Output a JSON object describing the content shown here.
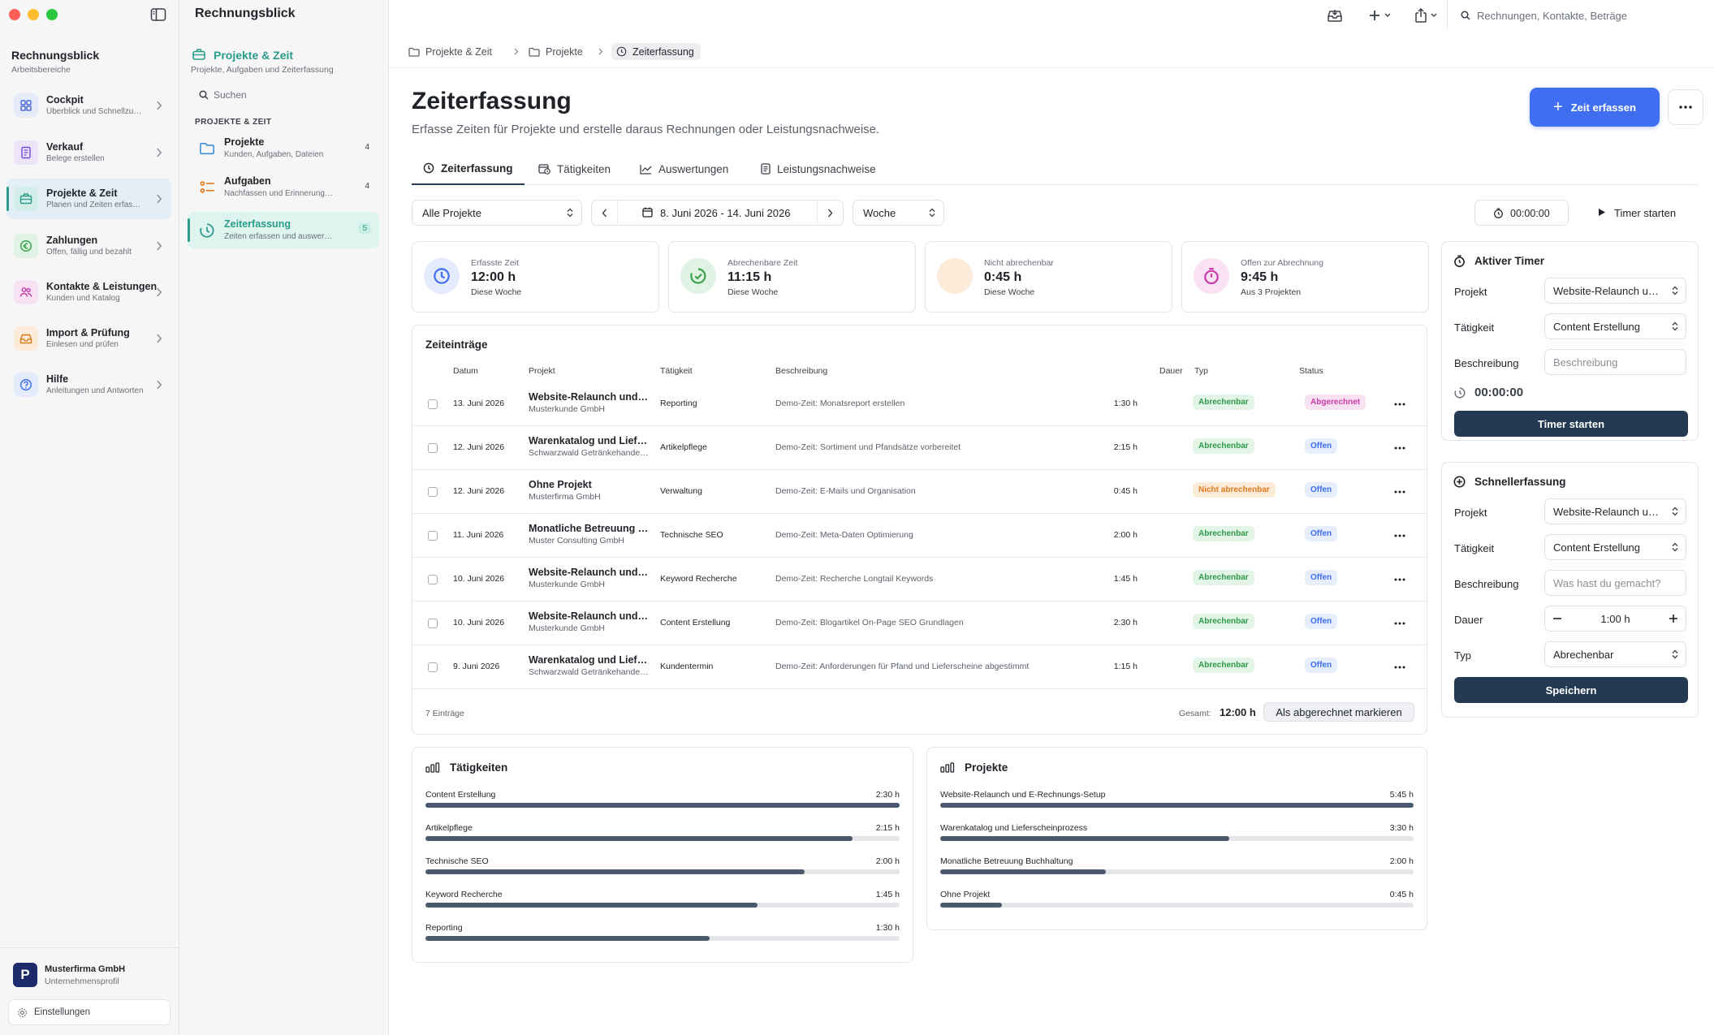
{
  "app": {
    "title": "Rechnungsblick",
    "workspace_title": "Rechnungsblick",
    "workspace_subtitle": "Arbeitsbereiche"
  },
  "sidebar": {
    "items": [
      {
        "label": "Cockpit",
        "sub": "Überblick und Schnellzugriff",
        "icon": "grid-icon",
        "color": "#4f6bd8",
        "bg": "#e6ebfa",
        "active": false
      },
      {
        "label": "Verkauf",
        "sub": "Belege erstellen",
        "icon": "document-icon",
        "color": "#7b4fd8",
        "bg": "#ece5fa",
        "active": false
      },
      {
        "label": "Projekte & Zeit",
        "sub": "Planen und Zeiten erfassen",
        "icon": "briefcase-icon",
        "color": "#2b9b8c",
        "bg": "#d3ede8",
        "active": true
      },
      {
        "label": "Zahlungen",
        "sub": "Offen, fällig und bezahlt",
        "icon": "euro-icon",
        "color": "#3aa34d",
        "bg": "#e1f3e4",
        "active": false
      },
      {
        "label": "Kontakte & Leistungen",
        "sub": "Kunden und Katalog",
        "icon": "people-icon",
        "color": "#c93ba7",
        "bg": "#f8e2f3",
        "active": false
      },
      {
        "label": "Import & Prüfung",
        "sub": "Einlesen und prüfen",
        "icon": "inbox-icon",
        "color": "#e07a1c",
        "bg": "#fcebd9",
        "active": false
      },
      {
        "label": "Hilfe",
        "sub": "Anleitungen und Antworten",
        "icon": "help-icon",
        "color": "#3f6ff0",
        "bg": "#e3ebfc",
        "active": false
      }
    ],
    "company_logo": "P",
    "company_name": "Musterfirma GmbH",
    "company_sub": "Unternehmensprofil",
    "settings_label": "Einstellungen"
  },
  "subnav": {
    "title": "Projekte & Zeit",
    "subtitle": "Projekte, Aufgaben und Zeiterfassung",
    "search_label": "Suchen",
    "section": "PROJEKTE & ZEIT",
    "items": [
      {
        "label": "Projekte",
        "desc": "Kunden, Aufgaben, Dateien",
        "count": "4",
        "active": false
      },
      {
        "label": "Aufgaben",
        "desc": "Nachfassen und Erinnerungen",
        "count": "4",
        "active": false
      },
      {
        "label": "Zeiterfassung",
        "desc": "Zeiten erfassen und auswerten",
        "count": "5",
        "active": true
      }
    ]
  },
  "toolbar": {
    "search_placeholder": "Rechnungen, Kontakte, Beträge"
  },
  "breadcrumb": [
    "Projekte & Zeit",
    "Projekte",
    "Zeiterfassung"
  ],
  "page": {
    "title": "Zeiterfassung",
    "subtitle": "Erfasse Zeiten für Projekte und erstelle daraus Rechnungen oder Leistungsnachweise.",
    "primary_button": "Zeit erfassen"
  },
  "tabs": [
    "Zeiterfassung",
    "Tätigkeiten",
    "Auswertungen",
    "Leistungsnachweise"
  ],
  "filters": {
    "project": "Alle Projekte",
    "date_range": "8. Juni 2026 - 14. Juni 2026",
    "period": "Woche",
    "timer": "00:00:00",
    "timer_start": "Timer starten"
  },
  "stats": [
    {
      "label": "Erfasste Zeit",
      "value": "12:00 h",
      "hint": "Diese Woche",
      "color": "#3f6ff0",
      "bg": "#e3ebfc",
      "icon": "clock-icon"
    },
    {
      "label": "Abrechenbare Zeit",
      "value": "11:15 h",
      "hint": "Diese Woche",
      "color": "#3aa34d",
      "bg": "#e1f3e4",
      "icon": "timer-check-icon"
    },
    {
      "label": "Nicht abrechenbar",
      "value": "0:45 h",
      "hint": "Diese Woche",
      "color": "#e07a1c",
      "bg": "#fcebd9",
      "icon": "none"
    },
    {
      "label": "Offen zur Abrechnung",
      "value": "9:45 h",
      "hint": "Aus 3 Projekten",
      "color": "#c93ba7",
      "bg": "#f8e2f3",
      "icon": "stopwatch-icon"
    }
  ],
  "entries": {
    "title": "Zeiteinträge",
    "columns": {
      "date": "Datum",
      "project": "Projekt",
      "activity": "Tätigkeit",
      "description": "Beschreibung",
      "duration": "Dauer",
      "type": "Typ",
      "status": "Status"
    },
    "rows": [
      {
        "date": "13. Juni 2026",
        "project": "Website-Relaunch und E-Rechnungs-Setup",
        "client": "Musterkunde GmbH",
        "activity": "Reporting",
        "description": "Demo-Zeit: Monatsreport erstellen",
        "duration": "1:30 h",
        "type": "Abrechenbar",
        "status": "Abgerechnet"
      },
      {
        "date": "12. Juni 2026",
        "project": "Warenkatalog und Lieferscheinprozess",
        "client": "Schwarzwald Getränkehandel GmbH",
        "activity": "Artikelpflege",
        "description": "Demo-Zeit: Sortiment und Pfandsätze vorbereitet",
        "duration": "2:15 h",
        "type": "Abrechenbar",
        "status": "Offen"
      },
      {
        "date": "12. Juni 2026",
        "project": "Ohne Projekt",
        "client": "Musterfirma GmbH",
        "activity": "Verwaltung",
        "description": "Demo-Zeit: E-Mails und Organisation",
        "duration": "0:45 h",
        "type": "Nicht abrechenbar",
        "status": "Offen"
      },
      {
        "date": "11. Juni 2026",
        "project": "Monatliche Betreuung Buchhaltung",
        "client": "Muster Consulting GmbH",
        "activity": "Technische SEO",
        "description": "Demo-Zeit: Meta-Daten Optimierung",
        "duration": "2:00 h",
        "type": "Abrechenbar",
        "status": "Offen"
      },
      {
        "date": "10. Juni 2026",
        "project": "Website-Relaunch und E-Rechnungs-Setup",
        "client": "Musterkunde GmbH",
        "activity": "Keyword Recherche",
        "description": "Demo-Zeit: Recherche Longtail Keywords",
        "duration": "1:45 h",
        "type": "Abrechenbar",
        "status": "Offen"
      },
      {
        "date": "10. Juni 2026",
        "project": "Website-Relaunch und E-Rechnungs-Setup",
        "client": "Musterkunde GmbH",
        "activity": "Content Erstellung",
        "description": "Demo-Zeit: Blogartikel On-Page SEO Grundlagen",
        "duration": "2:30 h",
        "type": "Abrechenbar",
        "status": "Offen"
      },
      {
        "date": "9. Juni 2026",
        "project": "Warenkatalog und Lieferscheinprozess",
        "client": "Schwarzwald Getränkehandel GmbH",
        "activity": "Kundentermin",
        "description": "Demo-Zeit: Anforderungen für Pfand und Lieferscheine abgestimmt",
        "duration": "1:15 h",
        "type": "Abrechenbar",
        "status": "Offen"
      }
    ],
    "count": "7 Einträge",
    "total_label": "Gesamt:",
    "total_value": "12:00 h",
    "mark_button": "Als abgerechnet markieren"
  },
  "activities": {
    "title": "Tätigkeiten",
    "items": [
      {
        "name": "Content Erstellung",
        "value": "2:30 h",
        "share": 1.0
      },
      {
        "name": "Artikelpflege",
        "value": "2:15 h",
        "share": 0.9
      },
      {
        "name": "Technische SEO",
        "value": "2:00 h",
        "share": 0.8
      },
      {
        "name": "Keyword Recherche",
        "value": "1:45 h",
        "share": 0.7
      },
      {
        "name": "Reporting",
        "value": "1:30 h",
        "share": 0.6
      }
    ]
  },
  "projects": {
    "title": "Projekte",
    "items": [
      {
        "name": "Website-Relaunch und E-Rechnungs-Setup",
        "value": "5:45 h",
        "share": 1.0
      },
      {
        "name": "Warenkatalog und Lieferscheinprozess",
        "value": "3:30 h",
        "share": 0.61
      },
      {
        "name": "Monatliche Betreuung Buchhaltung",
        "value": "2:00 h",
        "share": 0.35
      },
      {
        "name": "Ohne Projekt",
        "value": "0:45 h",
        "share": 0.13
      }
    ]
  },
  "active_timer": {
    "title": "Aktiver Timer",
    "project_label": "Projekt",
    "project_value": "Website-Relaunch und E-Rechnungs-Setup",
    "activity_label": "Tätigkeit",
    "activity_value": "Content Erstellung",
    "description_label": "Beschreibung",
    "description_placeholder": "Beschreibung",
    "time": "00:00:00",
    "button": "Timer starten"
  },
  "quick_entry": {
    "title": "Schnellerfassung",
    "project_label": "Projekt",
    "project_value": "Website-Relaunch und E-Rechnungs-Setup",
    "activity_label": "Tätigkeit",
    "activity_value": "Content Erstellung",
    "description_label": "Beschreibung",
    "description_placeholder": "Was hast du gemacht?",
    "duration_label": "Dauer",
    "duration_value": "1:00 h",
    "type_label": "Typ",
    "type_value": "Abrechenbar",
    "button": "Speichern"
  }
}
